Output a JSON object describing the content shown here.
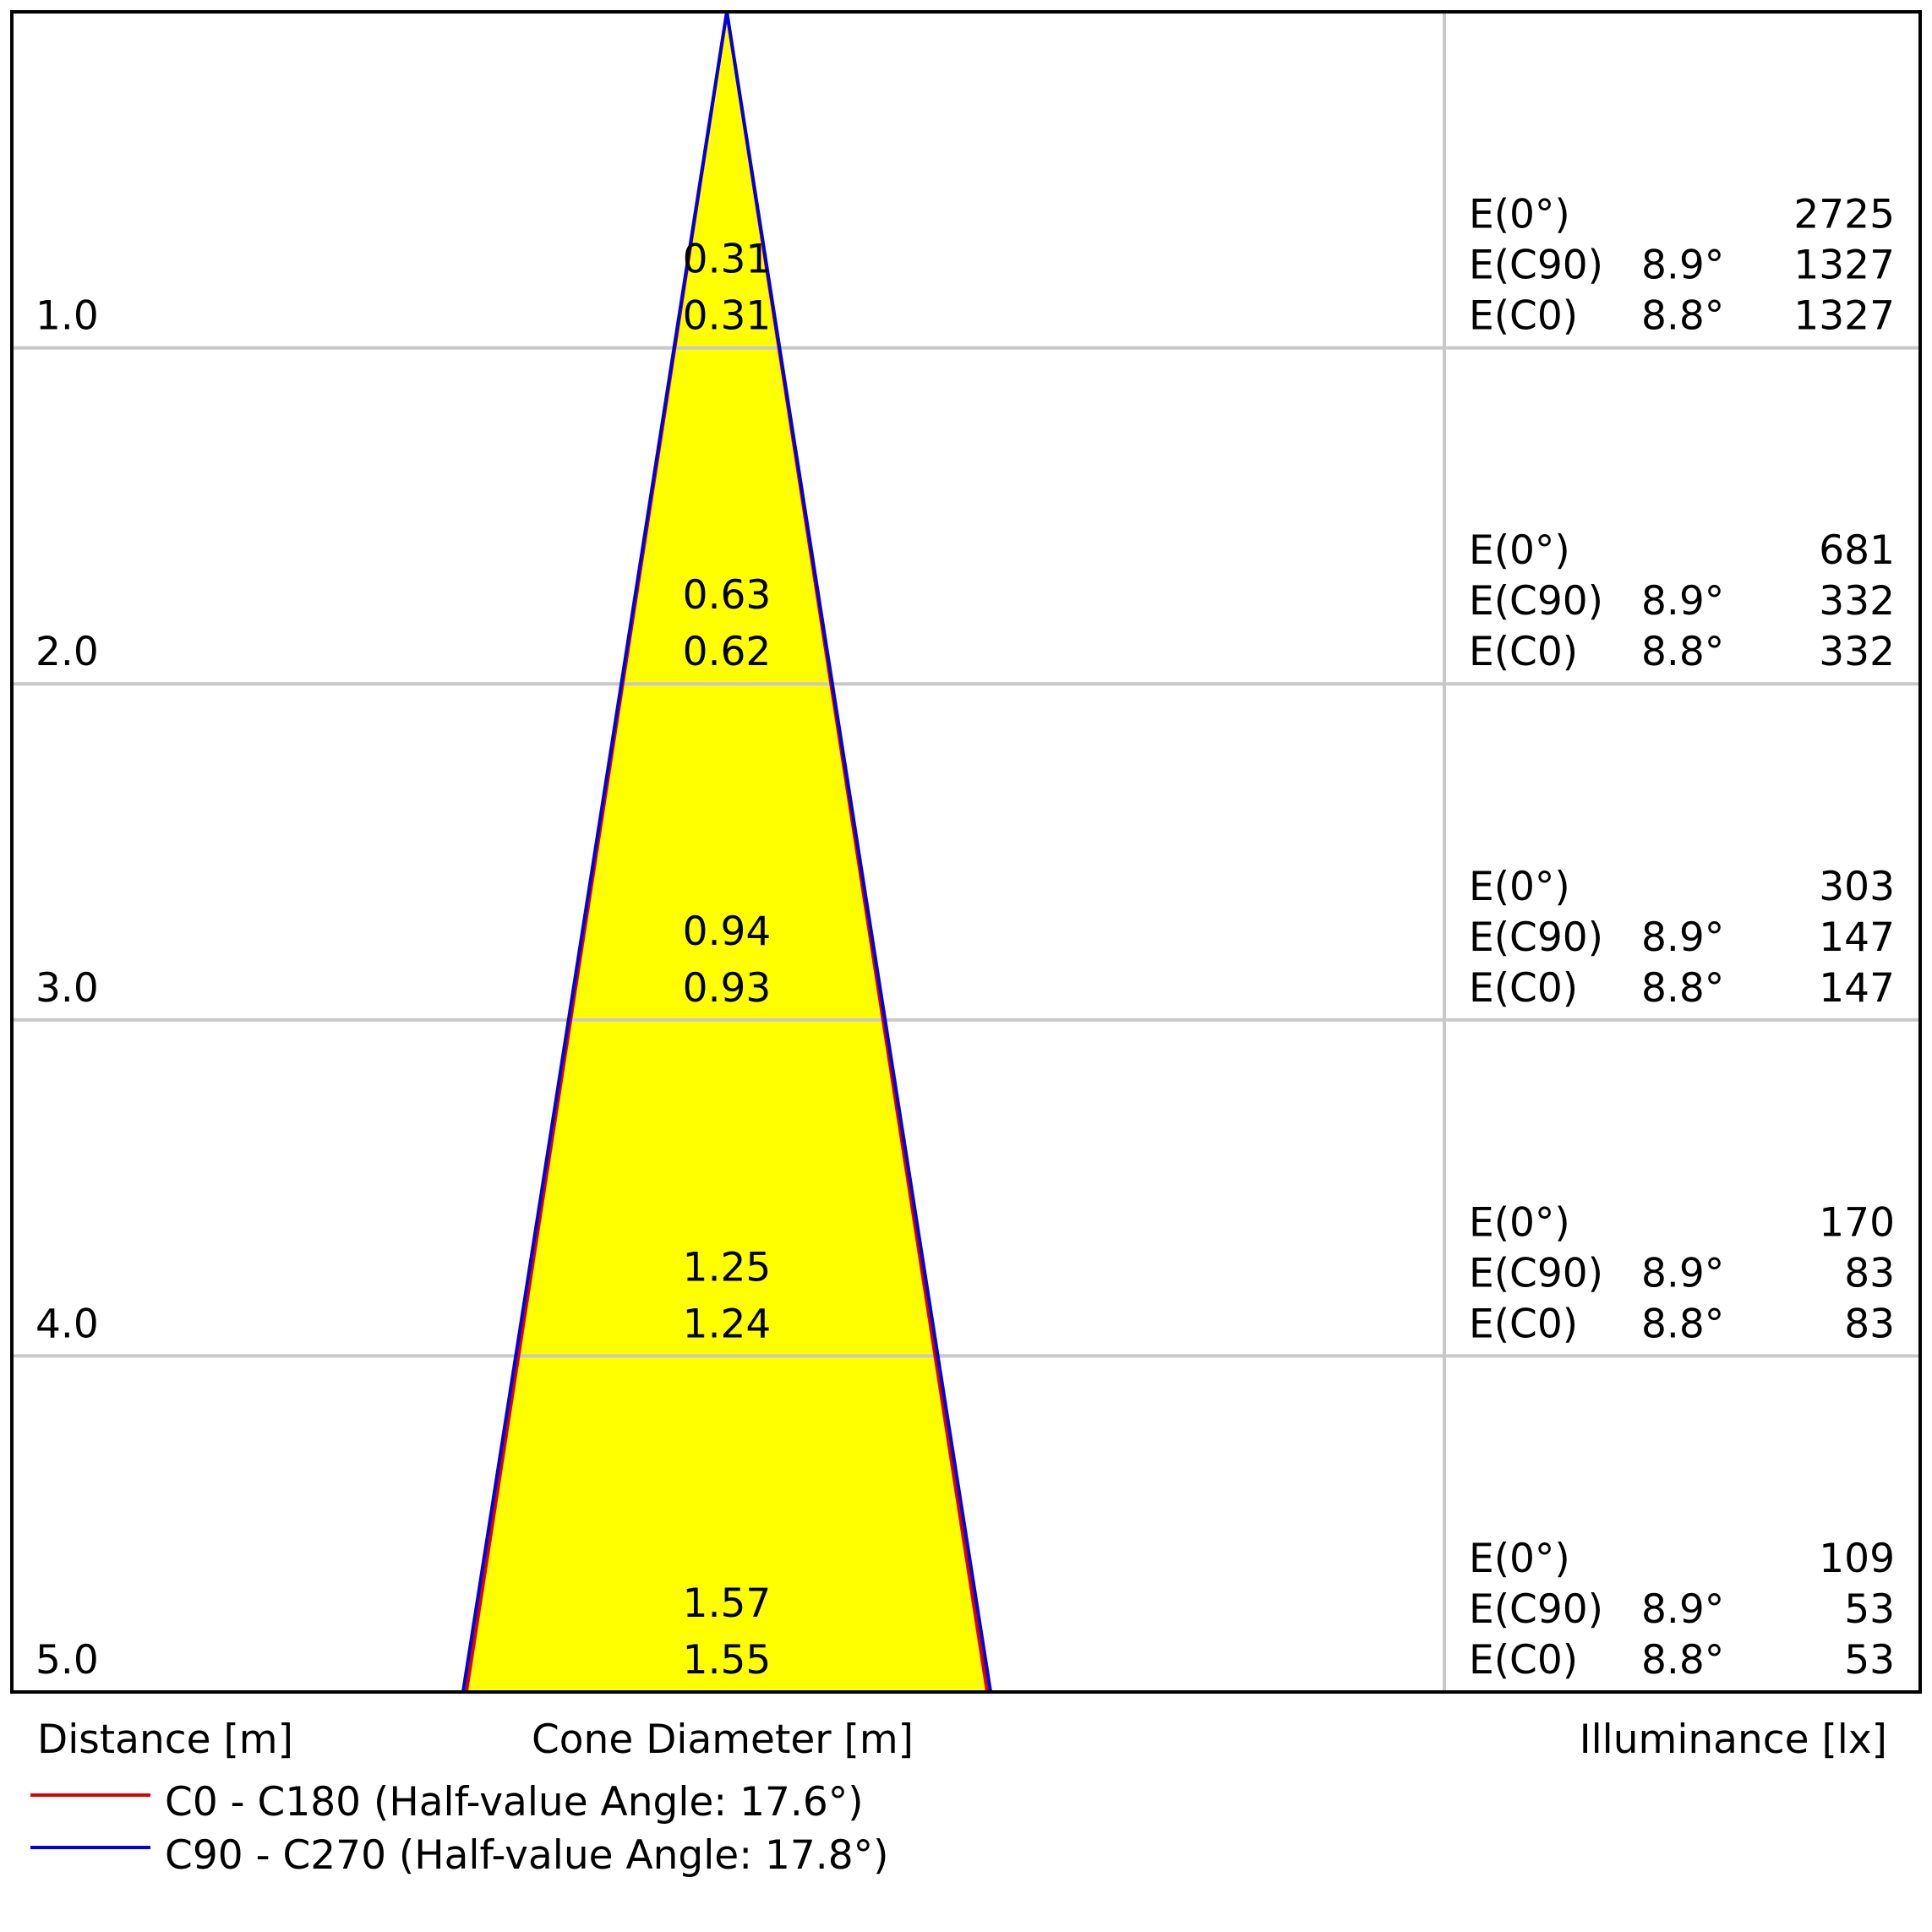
{
  "colors": {
    "cone_fill": "#ffff00",
    "c0_line": "#dd0000",
    "c90_line": "#0000dd",
    "grid": "#c8c8c8",
    "frame": "#000000"
  },
  "labels": {
    "distance_axis": "Distance [m]",
    "diameter_axis": "Cone Diameter [m]",
    "illuminance_axis": "Illuminance [lx]"
  },
  "legend": {
    "c0": "C0 - C180 (Half-value Angle: 17.6°)",
    "c90": "C90 - C270 (Half-value Angle: 17.8°)"
  },
  "chart_data": {
    "type": "table",
    "max_distance": 5.0,
    "rows": [
      {
        "distance": "1.0",
        "d_c90": "0.31",
        "d_c0": "0.31",
        "e0_label": "E(0°)",
        "e0": "2725",
        "ec90_label": "E(C90)",
        "ec90_angle": "8.9°",
        "ec90": "1327",
        "ec0_label": "E(C0)",
        "ec0_angle": "8.8°",
        "ec0": "1327"
      },
      {
        "distance": "2.0",
        "d_c90": "0.63",
        "d_c0": "0.62",
        "e0_label": "E(0°)",
        "e0": "681",
        "ec90_label": "E(C90)",
        "ec90_angle": "8.9°",
        "ec90": "332",
        "ec0_label": "E(C0)",
        "ec0_angle": "8.8°",
        "ec0": "332"
      },
      {
        "distance": "3.0",
        "d_c90": "0.94",
        "d_c0": "0.93",
        "e0_label": "E(0°)",
        "e0": "303",
        "ec90_label": "E(C90)",
        "ec90_angle": "8.9°",
        "ec90": "147",
        "ec0_label": "E(C0)",
        "ec0_angle": "8.8°",
        "ec0": "147"
      },
      {
        "distance": "4.0",
        "d_c90": "1.25",
        "d_c0": "1.24",
        "e0_label": "E(0°)",
        "e0": "170",
        "ec90_label": "E(C90)",
        "ec90_angle": "8.9°",
        "ec90": "83",
        "ec0_label": "E(C0)",
        "ec0_angle": "8.8°",
        "ec0": "83"
      },
      {
        "distance": "5.0",
        "d_c90": "1.57",
        "d_c0": "1.55",
        "e0_label": "E(0°)",
        "e0": "109",
        "ec90_label": "E(C90)",
        "ec90_angle": "8.9°",
        "ec90": "53",
        "ec0_label": "E(C0)",
        "ec0_angle": "8.8°",
        "ec0": "53"
      }
    ]
  }
}
